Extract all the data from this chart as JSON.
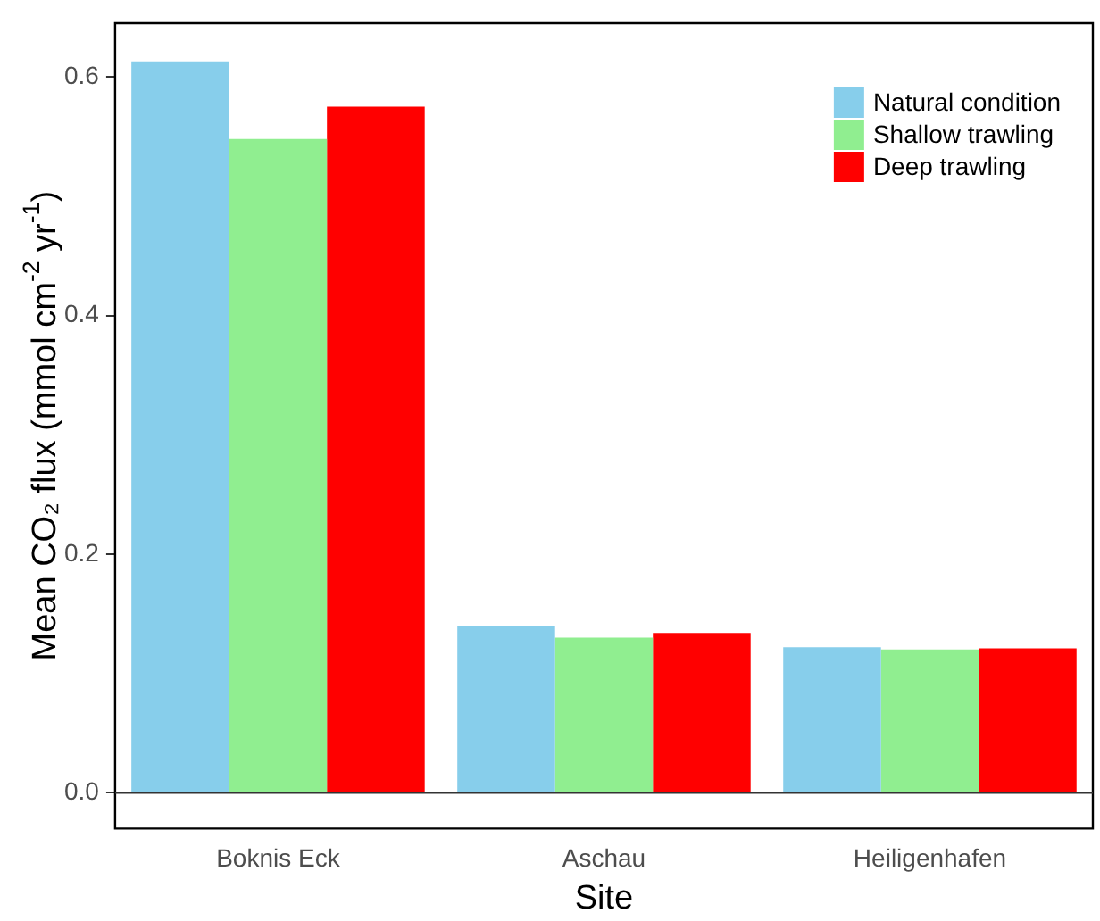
{
  "chart_data": {
    "type": "bar",
    "xlabel": "Site",
    "ylabel": "Mean CO₂ flux (mmol cm$^{-2}$ yr$^{-1}$)",
    "categories": [
      "Boknis Eck",
      "Aschau",
      "Heiligenhafen"
    ],
    "series": [
      {
        "name": "Natural condition",
        "color": "#87ceeb",
        "values": [
          0.613,
          0.14,
          0.122
        ]
      },
      {
        "name": "Shallow trawling",
        "color": "#90ee90",
        "values": [
          0.548,
          0.13,
          0.12
        ]
      },
      {
        "name": "Deep trawling",
        "color": "#ff0000",
        "values": [
          0.575,
          0.134,
          0.121
        ]
      }
    ],
    "ylim": [
      -0.03,
      0.645
    ],
    "yticks": [
      {
        "value": 0,
        "label": "0.0"
      },
      {
        "value": 0.2,
        "label": "0.2"
      },
      {
        "value": 0.4,
        "label": "0.4"
      },
      {
        "value": 0.6,
        "label": "0.6"
      }
    ],
    "ref_lines": [
      {
        "axis": "y",
        "value": 0,
        "color": "#333333"
      }
    ],
    "legend": "top right"
  }
}
